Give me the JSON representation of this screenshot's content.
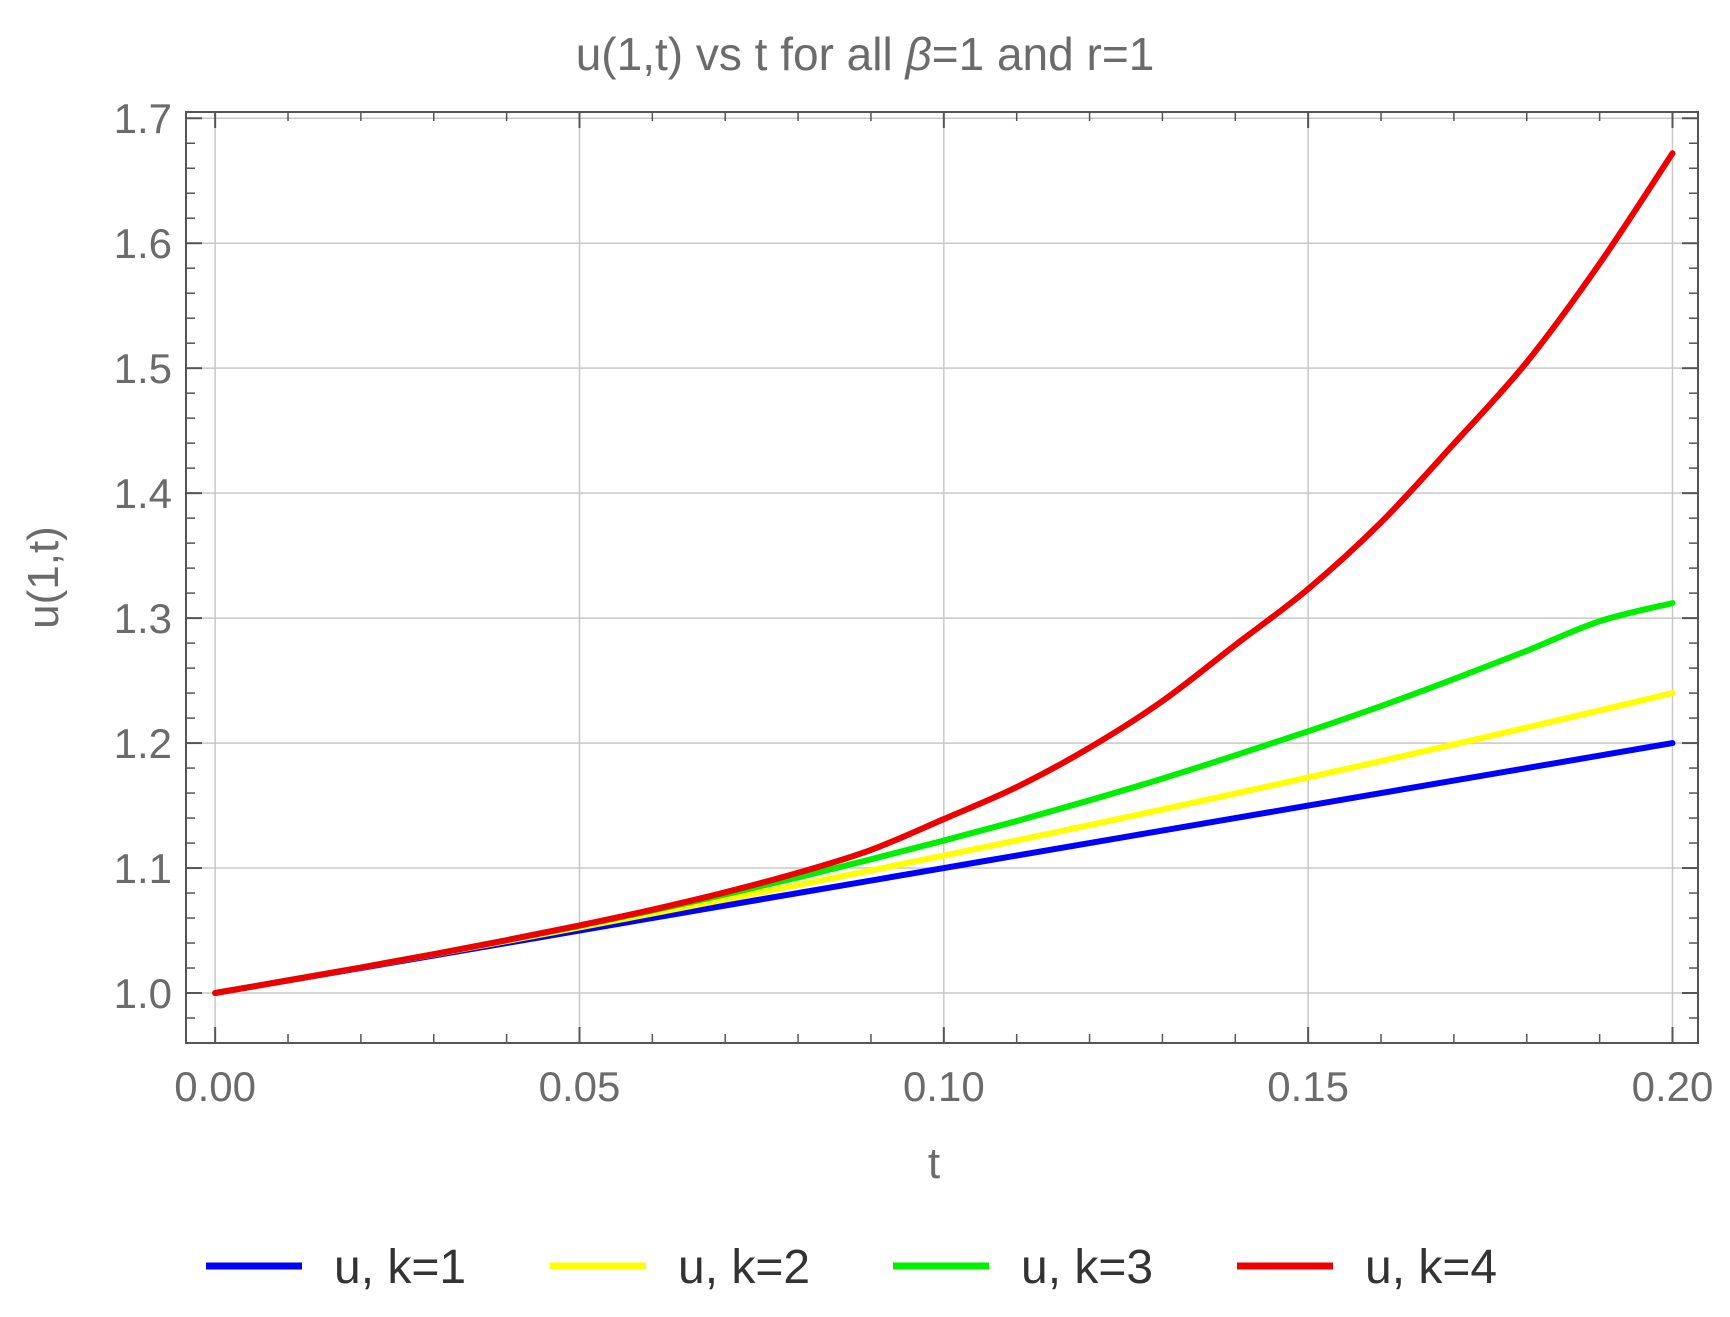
{
  "chart_data": {
    "type": "line",
    "title": {
      "prefix": "u(1,t) vs t for all ",
      "symbol": "β",
      "suffix": "=1 and r=1"
    },
    "xlabel": "t",
    "ylabel": "u(1,t)",
    "xlim": [
      -0.004,
      0.2035
    ],
    "ylim": [
      0.96,
      1.705
    ],
    "x_ticks": [
      0.0,
      0.05,
      0.1,
      0.15,
      0.2
    ],
    "x_tick_labels": [
      "0.00",
      "0.05",
      "0.10",
      "0.15",
      "0.20"
    ],
    "y_ticks": [
      1.0,
      1.1,
      1.2,
      1.3,
      1.4,
      1.5,
      1.6,
      1.7
    ],
    "y_tick_labels": [
      "1.0",
      "1.1",
      "1.2",
      "1.3",
      "1.4",
      "1.5",
      "1.6",
      "1.7"
    ],
    "grid": true,
    "legend_position": "bottom",
    "x": [
      0.0,
      0.01,
      0.02,
      0.03,
      0.04,
      0.05,
      0.06,
      0.07,
      0.08,
      0.09,
      0.1,
      0.11,
      0.12,
      0.13,
      0.14,
      0.15,
      0.16,
      0.17,
      0.18,
      0.19,
      0.2
    ],
    "series": [
      {
        "name": "u, k=1",
        "color": "#0000ff",
        "values": [
          1.0,
          1.01,
          1.02,
          1.03,
          1.04,
          1.05,
          1.06,
          1.07,
          1.08,
          1.09,
          1.1,
          1.11,
          1.12,
          1.13,
          1.14,
          1.15,
          1.16,
          1.17,
          1.18,
          1.19,
          1.2
        ]
      },
      {
        "name": "u, k=2",
        "color": "#ffff00",
        "values": [
          1.0,
          1.0101,
          1.0204,
          1.0309,
          1.0416,
          1.0525,
          1.0636,
          1.0749,
          1.0864,
          1.0981,
          1.11,
          1.1221,
          1.1344,
          1.1469,
          1.1596,
          1.1725,
          1.1856,
          1.1989,
          1.2124,
          1.2261,
          1.24
        ]
      },
      {
        "name": "u, k=3",
        "color": "#00ee00",
        "values": [
          1.0,
          1.0101,
          1.0204,
          1.0311,
          1.0422,
          1.0538,
          1.066,
          1.0789,
          1.0925,
          1.107,
          1.122,
          1.1376,
          1.1542,
          1.1716,
          1.1902,
          1.2094,
          1.2296,
          1.2512,
          1.2738,
          1.2975,
          1.312
        ]
      },
      {
        "name": "u, k=4",
        "color": "#ee0000",
        "values": [
          1.0,
          1.0101,
          1.0204,
          1.0311,
          1.0423,
          1.0541,
          1.0667,
          1.0806,
          1.0962,
          1.1145,
          1.1392,
          1.1648,
          1.1963,
          1.2336,
          1.2785,
          1.3233,
          1.3766,
          1.4395,
          1.5048,
          1.5837,
          1.672
        ]
      }
    ]
  }
}
